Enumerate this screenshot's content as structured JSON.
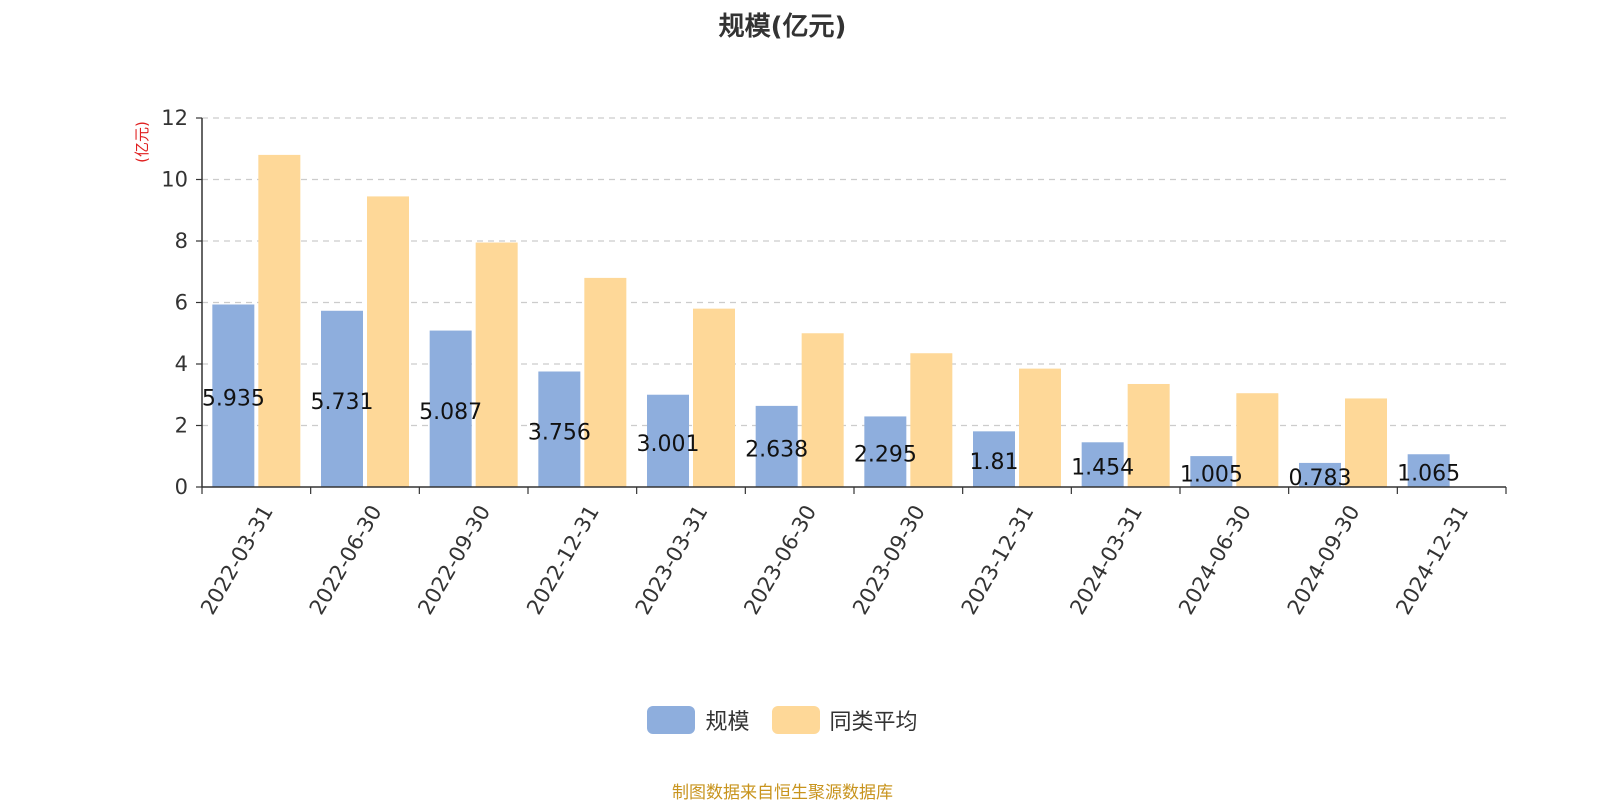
{
  "title": "规模(亿元)",
  "source_note": "制图数据来自恒生聚源数据库",
  "colors": {
    "scale": "#8eaedd",
    "average": "#fed898",
    "axis": "#333333",
    "grid": "#cccccc",
    "unit": "#e02020"
  },
  "chart_data": {
    "type": "bar",
    "title": "规模(亿元)",
    "ylabel": "(亿元)",
    "ylim": [
      0,
      12
    ],
    "yticks": [
      0,
      2,
      4,
      6,
      8,
      10,
      12
    ],
    "grid": true,
    "legend_position": "bottom",
    "categories": [
      "2022-03-31",
      "2022-06-30",
      "2022-09-30",
      "2022-12-31",
      "2023-03-31",
      "2023-06-30",
      "2023-09-30",
      "2023-12-31",
      "2024-03-31",
      "2024-06-30",
      "2024-09-30",
      "2024-12-31"
    ],
    "series": [
      {
        "name": "规模",
        "values": [
          5.935,
          5.731,
          5.087,
          3.756,
          3.001,
          2.638,
          2.295,
          1.81,
          1.454,
          1.005,
          0.783,
          1.065
        ],
        "labels": [
          "5.935",
          "5.731",
          "5.087",
          "3.756",
          "3.001",
          "2.638",
          "2.295",
          "1.81",
          "1.454",
          "1.005",
          "0.783",
          "1.065"
        ]
      },
      {
        "name": "同类平均",
        "values": [
          10.8,
          9.45,
          7.95,
          6.8,
          5.8,
          5.0,
          4.35,
          3.85,
          3.35,
          3.05,
          2.88,
          null
        ]
      }
    ]
  }
}
